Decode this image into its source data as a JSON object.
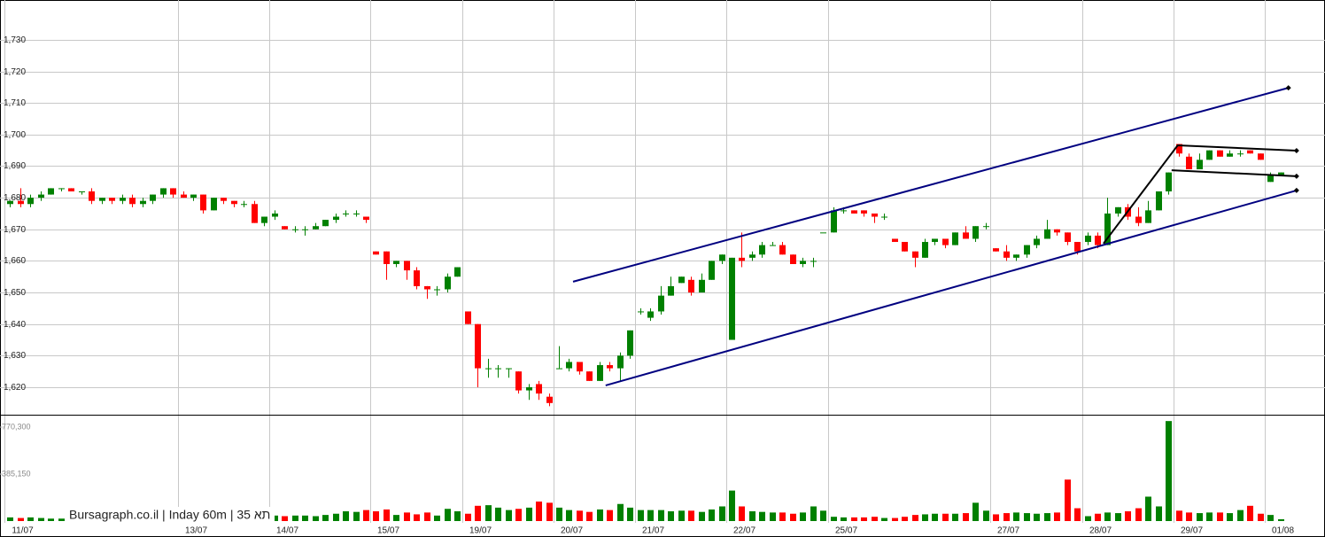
{
  "chart_data": {
    "type": "candlestick",
    "watermark": "Bursagraph.co.il | Inday 60m | 35 תא",
    "categories": [
      "11/07",
      null,
      null,
      null,
      null,
      null,
      null,
      null,
      null,
      null,
      null,
      null,
      null,
      null,
      null,
      null,
      null,
      "13/07",
      null,
      null,
      null,
      null,
      null,
      null,
      null,
      null,
      "14/07",
      null,
      null,
      null,
      null,
      null,
      null,
      null,
      null,
      null,
      "15/07",
      null,
      null,
      null,
      null,
      null,
      null,
      null,
      null,
      "19/07",
      null,
      null,
      null,
      null,
      null,
      null,
      null,
      null,
      "20/07",
      null,
      null,
      null,
      null,
      null,
      null,
      null,
      "21/07",
      null,
      null,
      null,
      null,
      null,
      null,
      null,
      null,
      "22/07",
      null,
      null,
      null,
      null,
      null,
      null,
      null,
      null,
      null,
      "25/07",
      null,
      null,
      null,
      null,
      null,
      null,
      null,
      null,
      null,
      null,
      null,
      null,
      null,
      null,
      null,
      "27/07",
      null,
      null,
      null,
      null,
      null,
      null,
      null,
      null,
      "28/07",
      null,
      null,
      null,
      null,
      null,
      null,
      null,
      null,
      "29/07",
      null,
      null,
      null,
      null,
      null,
      null,
      null,
      null,
      "01/08",
      null
    ],
    "open": [
      1678,
      1679,
      1678,
      1680,
      1681,
      1683,
      1683,
      1682,
      1682,
      1679,
      1680,
      1679,
      1680,
      1678,
      1679,
      1681,
      1683,
      1681,
      1680,
      1681,
      1676,
      1680,
      1679,
      1678,
      1678,
      1672,
      1674,
      1671,
      1670,
      1670,
      1670,
      1671,
      1673,
      1675,
      1675,
      1674,
      1663,
      1663,
      1659,
      1660,
      1657,
      1652,
      1651,
      1651,
      1655,
      1644,
      1640,
      1626,
      1626,
      1626,
      1625,
      1619,
      1621,
      1617,
      1626,
      1626,
      1628,
      1625,
      1622,
      1627,
      1626,
      1630,
      1644,
      1642,
      1644,
      1649,
      1653,
      1654,
      1650,
      1654,
      1660,
      1635,
      1661,
      1661,
      1662,
      1665,
      1665,
      1662,
      1659,
      1660,
      1669,
      1669,
      1676,
      1676,
      1676,
      1675,
      1674,
      1667,
      1666,
      1663,
      1661,
      1666,
      1667,
      1665,
      1669,
      1667,
      1671,
      1664,
      1663,
      1661,
      1662,
      1665,
      1667,
      1670,
      1669,
      1666,
      1666,
      1668,
      1665,
      1675,
      1677,
      1674,
      1672,
      1676,
      1682,
      1697,
      1693,
      1689,
      1692,
      1695,
      1693,
      1694,
      1695,
      1694,
      1685,
      1687
    ],
    "high": [
      1679,
      1683,
      1681,
      1682,
      1683,
      1683,
      1683,
      1682,
      1683,
      1680,
      1680,
      1681,
      1681,
      1680,
      1681,
      1683,
      1683,
      1682,
      1681,
      1681,
      1680,
      1680,
      1679,
      1679,
      1679,
      1674,
      1676,
      1671,
      1671,
      1671,
      1672,
      1673,
      1675,
      1676,
      1676,
      1674,
      1663,
      1663,
      1660,
      1660,
      1658,
      1652,
      1652,
      1656,
      1658,
      1644,
      1640,
      1629,
      1627,
      1626,
      1625,
      1621,
      1622,
      1618,
      1633,
      1629,
      1628,
      1625,
      1628,
      1628,
      1631,
      1638,
      1645,
      1645,
      1652,
      1655,
      1655,
      1655,
      1656,
      1660,
      1662,
      1661,
      1669,
      1663,
      1666,
      1666,
      1666,
      1662,
      1661,
      1661,
      1669,
      1677,
      1677,
      1676,
      1676,
      1675,
      1675,
      1667,
      1666,
      1663,
      1667,
      1667,
      1667,
      1669,
      1671,
      1671,
      1672,
      1664,
      1665,
      1662,
      1665,
      1668,
      1673,
      1670,
      1669,
      1666,
      1669,
      1669,
      1680,
      1677,
      1678,
      1677,
      1679,
      1682,
      1688,
      1697,
      1694,
      1694,
      1695,
      1695,
      1695,
      1695,
      1695,
      1694,
      1688,
      1688
    ],
    "low": [
      1677,
      1677,
      1677,
      1679,
      1681,
      1682,
      1682,
      1681,
      1678,
      1678,
      1678,
      1678,
      1677,
      1677,
      1678,
      1680,
      1680,
      1680,
      1679,
      1675,
      1676,
      1678,
      1677,
      1677,
      1672,
      1671,
      1673,
      1670,
      1669,
      1668,
      1670,
      1671,
      1672,
      1674,
      1674,
      1672,
      1662,
      1654,
      1658,
      1654,
      1651,
      1648,
      1649,
      1650,
      1655,
      1640,
      1620,
      1623,
      1623,
      1623,
      1618,
      1616,
      1616,
      1614,
      1626,
      1625,
      1624,
      1622,
      1622,
      1625,
      1622,
      1629,
      1643,
      1641,
      1643,
      1649,
      1653,
      1649,
      1650,
      1654,
      1659,
      1635,
      1658,
      1660,
      1661,
      1665,
      1662,
      1659,
      1658,
      1658,
      1669,
      1669,
      1675,
      1675,
      1674,
      1672,
      1673,
      1666,
      1663,
      1658,
      1661,
      1665,
      1664,
      1665,
      1667,
      1666,
      1670,
      1663,
      1660,
      1660,
      1661,
      1664,
      1667,
      1668,
      1665,
      1662,
      1665,
      1664,
      1665,
      1674,
      1673,
      1671,
      1672,
      1676,
      1681,
      1693,
      1689,
      1689,
      1692,
      1693,
      1693,
      1693,
      1694,
      1692,
      1685,
      1687
    ],
    "close": [
      1679,
      1678,
      1680,
      1681,
      1683,
      1683,
      1682,
      1682,
      1679,
      1680,
      1679,
      1680,
      1678,
      1679,
      1681,
      1683,
      1681,
      1680,
      1681,
      1676,
      1680,
      1679,
      1678,
      1678,
      1672,
      1674,
      1675,
      1670,
      1670,
      1670,
      1671,
      1673,
      1674,
      1675,
      1675,
      1673,
      1662,
      1659,
      1660,
      1657,
      1652,
      1651,
      1651,
      1655,
      1658,
      1640,
      1626,
      1626,
      1626,
      1626,
      1619,
      1620,
      1618,
      1615,
      1626,
      1628,
      1625,
      1622,
      1627,
      1626,
      1630,
      1638,
      1644,
      1644,
      1649,
      1652,
      1655,
      1650,
      1654,
      1660,
      1662,
      1661,
      1660,
      1662,
      1665,
      1665,
      1662,
      1659,
      1660,
      1660,
      1669,
      1676,
      1676,
      1675,
      1675,
      1674,
      1674,
      1666,
      1663,
      1661,
      1666,
      1667,
      1665,
      1669,
      1667,
      1671,
      1671,
      1663,
      1661,
      1662,
      1665,
      1667,
      1670,
      1669,
      1666,
      1663,
      1668,
      1665,
      1675,
      1677,
      1674,
      1672,
      1676,
      1682,
      1688,
      1694,
      1689,
      1692,
      1695,
      1693,
      1694,
      1694,
      1694,
      1692,
      1687,
      1688
    ],
    "volume": [
      30000,
      25000,
      30000,
      25000,
      20000,
      20000,
      20000,
      25000,
      40000,
      30000,
      25000,
      30000,
      40000,
      35000,
      30000,
      45000,
      35000,
      40000,
      35000,
      60000,
      70000,
      50000,
      45000,
      40000,
      100000,
      95000,
      45000,
      40000,
      45000,
      45000,
      40000,
      50000,
      60000,
      80000,
      75000,
      90000,
      80000,
      95000,
      50000,
      70000,
      55000,
      70000,
      45000,
      100000,
      80000,
      60000,
      125000,
      130000,
      110000,
      90000,
      100000,
      110000,
      160000,
      150000,
      110000,
      90000,
      85000,
      75000,
      95000,
      90000,
      140000,
      110000,
      90000,
      90000,
      90000,
      80000,
      85000,
      85000,
      75000,
      95000,
      120000,
      250000,
      120000,
      80000,
      75000,
      70000,
      70000,
      60000,
      70000,
      120000,
      85000,
      35000,
      30000,
      30000,
      30000,
      35000,
      25000,
      25000,
      35000,
      50000,
      55000,
      60000,
      60000,
      60000,
      65000,
      150000,
      85000,
      55000,
      65000,
      70000,
      65000,
      60000,
      65000,
      70000,
      340000,
      105000,
      40000,
      60000,
      70000,
      65000,
      80000,
      105000,
      200000,
      120000,
      820000,
      85000,
      70000,
      65000,
      70000,
      70000,
      65000,
      90000,
      125000,
      60000,
      50000,
      15000
    ],
    "up_color": "#008000",
    "down_color": "#ff0000",
    "xlim": [
      -1,
      129.4
    ],
    "ylim": [
      1611.3,
      1742.6
    ],
    "yticks": [
      {
        "value": 1620,
        "label": "1,620"
      },
      {
        "value": 1630,
        "label": "1,630"
      },
      {
        "value": 1640,
        "label": "1,640"
      },
      {
        "value": 1650,
        "label": "1,650"
      },
      {
        "value": 1660,
        "label": "1,660"
      },
      {
        "value": 1670,
        "label": "1,670"
      },
      {
        "value": 1680,
        "label": "1,680"
      },
      {
        "value": 1690,
        "label": "1,690"
      },
      {
        "value": 1700,
        "label": "1,700"
      },
      {
        "value": 1710,
        "label": "1,710"
      },
      {
        "value": 1720,
        "label": "1,720"
      },
      {
        "value": 1730,
        "label": "1,730"
      }
    ],
    "y2lim": [
      0,
      872000
    ],
    "y2ticks": [
      {
        "value": 385150,
        "label": "385,150"
      },
      {
        "value": 770300,
        "label": "770,300"
      }
    ],
    "grid": true,
    "trendlines": [
      {
        "x": [
          55.4,
          125.8
        ],
        "y": [
          1653.4,
          1714.8
        ],
        "color": "#000080"
      },
      {
        "x": [
          58.6,
          126.6
        ],
        "y": [
          1620.6,
          1682.3
        ],
        "color": "#000080"
      },
      {
        "x": [
          107.6,
          114.9,
          126.6
        ],
        "y": [
          1665.5,
          1696.6,
          1694.9
        ],
        "color": "#000000"
      },
      {
        "x": [
          114.3,
          126.6
        ],
        "y": [
          1688.7,
          1686.8
        ],
        "color": "#000000"
      }
    ]
  }
}
